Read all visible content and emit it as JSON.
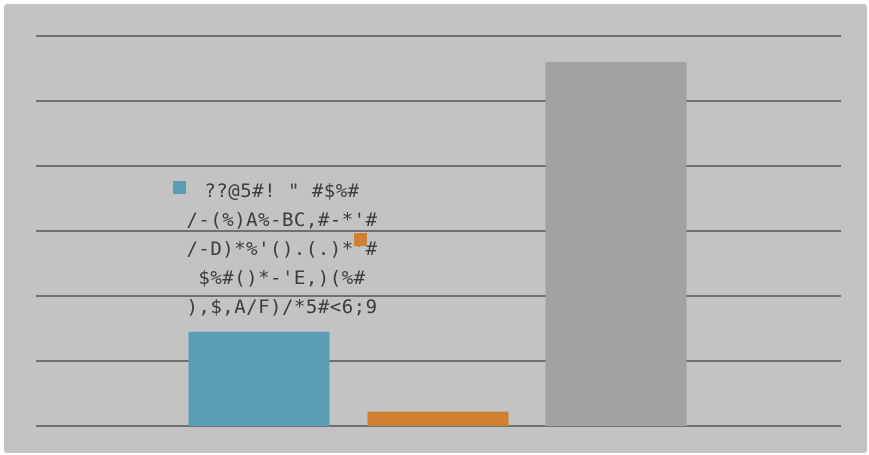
{
  "chart_data": {
    "type": "bar",
    "title": "",
    "xlabel": "",
    "ylabel": "",
    "ylim": [
      0,
      6
    ],
    "grid": true,
    "legend_position": "center-left",
    "categories": [
      "",
      "",
      ""
    ],
    "series": [
      {
        "values": [
          1.45,
          0.22,
          5.6
        ]
      }
    ],
    "colors": [
      "#5b9db5",
      "#d08030",
      "#a2a2a2"
    ],
    "legend": [
      {
        "marker_color": "#5b9db5",
        "lines": [
          "??@5#! \" #$%#",
          "/-(%)A%-BC,#-*'#",
          "/-D)*%'().(.)*'#",
          "$%#()*-'E,)(%#",
          "),$,A/F)/*5#<6;9"
        ]
      },
      {
        "marker_color": "#d08030",
        "lines": []
      }
    ]
  },
  "colors": {
    "plot_background": "#c3c3c3",
    "gridline": "#555555",
    "legend_text": "#3c3c3c"
  }
}
